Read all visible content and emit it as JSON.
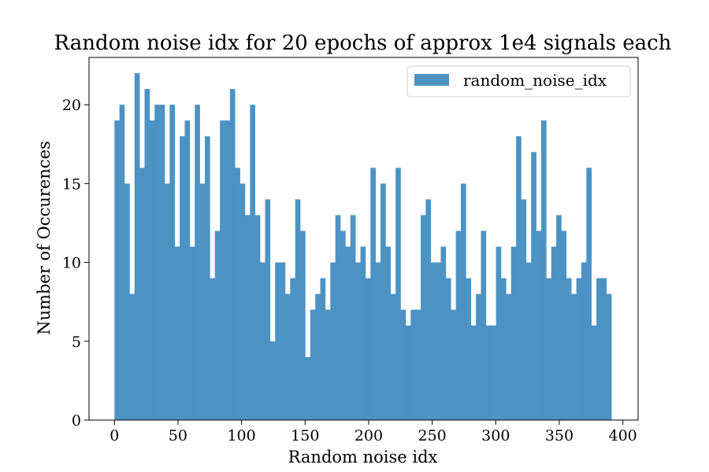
{
  "chart_data": {
    "type": "bar",
    "title": "Random noise idx for 20 epochs of approx 1e4 signals each",
    "xlabel": "Random noise idx",
    "ylabel": "Number of Occurences",
    "xlim": [
      -20,
      412
    ],
    "ylim": [
      0,
      23
    ],
    "xticks": [
      0,
      50,
      100,
      150,
      200,
      250,
      300,
      350,
      400
    ],
    "yticks": [
      0,
      5,
      10,
      15,
      20
    ],
    "bin_start": 0,
    "bin_width": 3.95,
    "legend": {
      "label": "random_noise_idx",
      "position": "upper right"
    },
    "bar_color": "#4c93c3",
    "grid": false,
    "values": [
      19,
      20,
      15,
      8,
      22,
      16,
      21,
      19,
      20,
      20,
      15,
      20,
      11,
      18,
      19,
      11,
      20,
      15,
      18,
      9,
      12,
      19,
      19,
      21,
      16,
      15,
      13,
      20,
      13,
      10,
      14,
      5,
      10,
      10,
      8,
      9,
      14,
      12,
      4,
      7,
      8,
      9,
      7,
      10,
      13,
      12,
      11,
      13,
      10,
      11,
      9,
      16,
      10,
      15,
      11,
      8,
      16,
      7,
      6,
      7,
      7,
      13,
      14,
      10,
      10,
      11,
      9,
      7,
      12,
      15,
      9,
      6,
      8,
      12,
      6,
      6,
      11,
      9,
      8,
      11,
      18,
      14,
      10,
      17,
      12,
      19,
      9,
      11,
      13,
      12,
      9,
      8,
      9,
      10,
      16,
      6,
      9,
      9,
      8
    ]
  }
}
